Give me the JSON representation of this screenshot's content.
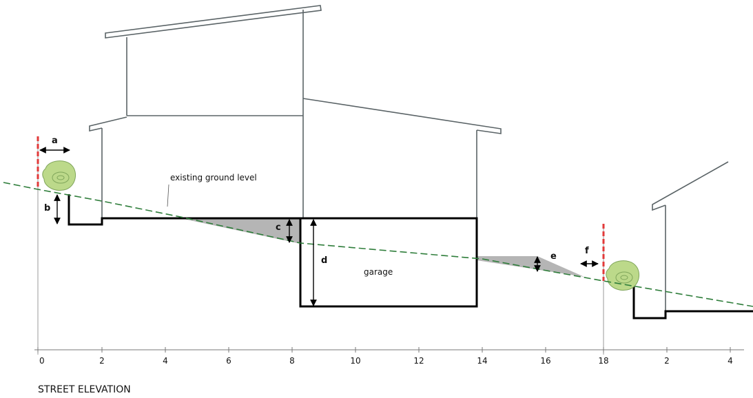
{
  "title": "STREET ELEVATION",
  "labels": {
    "a": "a",
    "b": "b",
    "c": "c",
    "d": "d",
    "e": "e",
    "f": "f",
    "ground": "existing ground level",
    "garage": "garage"
  },
  "axis": {
    "ticks": [
      "0",
      "2",
      "4",
      "6",
      "8",
      "10",
      "12",
      "14",
      "16",
      "18",
      "2",
      "4"
    ]
  }
}
